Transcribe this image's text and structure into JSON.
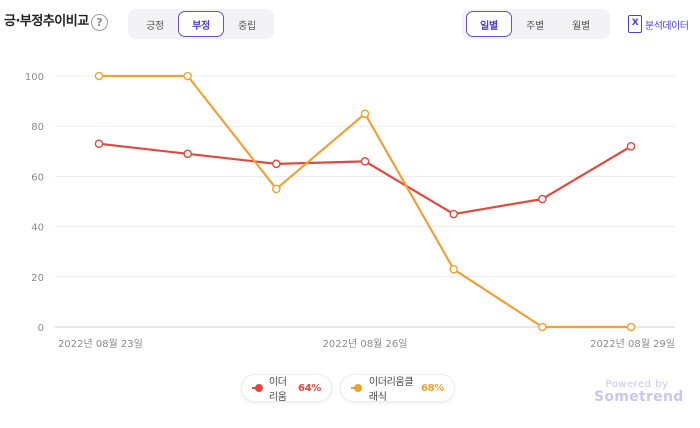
{
  "header": {
    "title": "긍·부정추이비교",
    "help_icon": "?"
  },
  "sentiment_tabs": [
    {
      "label": "긍정",
      "active": false
    },
    {
      "label": "부정",
      "active": true
    },
    {
      "label": "중립",
      "active": false
    }
  ],
  "period_tabs": [
    {
      "label": "일별",
      "active": true
    },
    {
      "label": "주별",
      "active": false
    },
    {
      "label": "월별",
      "active": false
    }
  ],
  "data_button": {
    "icon": "excel-icon",
    "icon_glyph": "X",
    "label": "분석데이터"
  },
  "legend": [
    {
      "name": "이더리움",
      "pct": "64%",
      "color": "#e2483d"
    },
    {
      "name": "이더리움클래식",
      "pct": "68%",
      "color": "#f0a136"
    }
  ],
  "powered": {
    "line1": "Powered by",
    "line2": "Sometrend"
  },
  "chart_data": {
    "type": "line",
    "x": [
      "2022-08-23",
      "2022-08-24",
      "2022-08-25",
      "2022-08-26",
      "2022-08-27",
      "2022-08-28",
      "2022-08-29"
    ],
    "x_tick_labels": [
      {
        "index": 0,
        "label": "2022년 08월 23일"
      },
      {
        "index": 3,
        "label": "2022년 08월 26일"
      },
      {
        "index": 6,
        "label": "2022년 08월 29일"
      }
    ],
    "y_ticks": [
      0,
      20,
      40,
      60,
      80,
      100
    ],
    "ylim": [
      0,
      100
    ],
    "grid": true,
    "series": [
      {
        "name": "이더리움",
        "color": "#e2483d",
        "values": [
          73,
          69,
          65,
          66,
          45,
          51,
          72
        ]
      },
      {
        "name": "이더리움클래식",
        "color": "#f0a136",
        "values": [
          100,
          100,
          55,
          85,
          23,
          0,
          0
        ]
      }
    ]
  }
}
